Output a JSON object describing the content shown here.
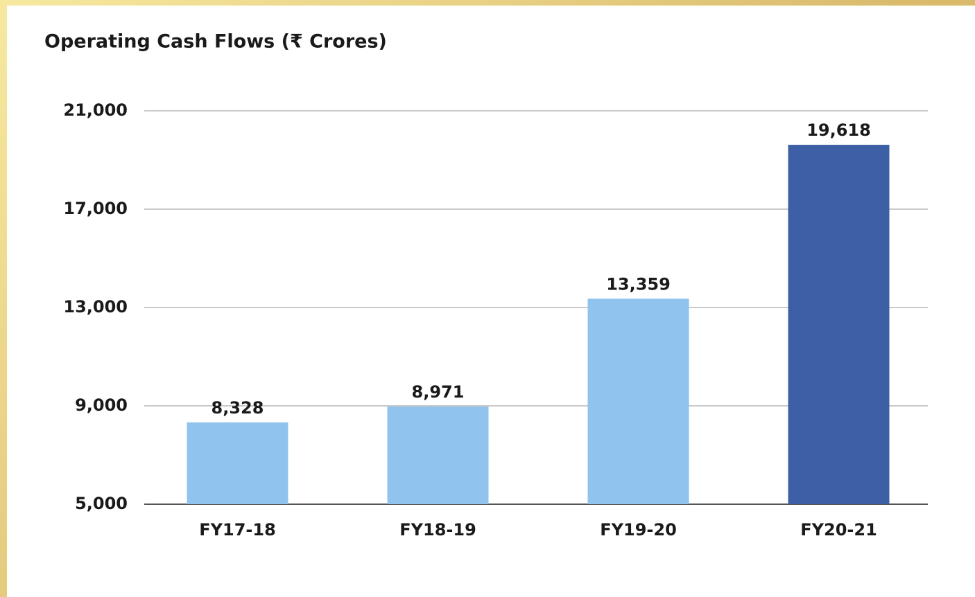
{
  "chart_data": {
    "type": "bar",
    "title": "Operating Cash Flows (₹ Crores)",
    "categories": [
      "FY17-18",
      "FY18-19",
      "FY19-20",
      "FY20-21"
    ],
    "values": [
      8328,
      8971,
      13359,
      19618
    ],
    "value_labels": [
      "8,328",
      "8,971",
      "13,359",
      "19,618"
    ],
    "colors": [
      "#90c3ee",
      "#90c3ee",
      "#90c3ee",
      "#3c5fa6"
    ],
    "ylim": [
      5000,
      21000
    ],
    "yticks": [
      {
        "value": 5000,
        "label": "5,000"
      },
      {
        "value": 9000,
        "label": "9,000"
      },
      {
        "value": 13000,
        "label": "13,000"
      },
      {
        "value": 17000,
        "label": "17,000"
      },
      {
        "value": 21000,
        "label": "21,000"
      }
    ],
    "grid": true
  }
}
